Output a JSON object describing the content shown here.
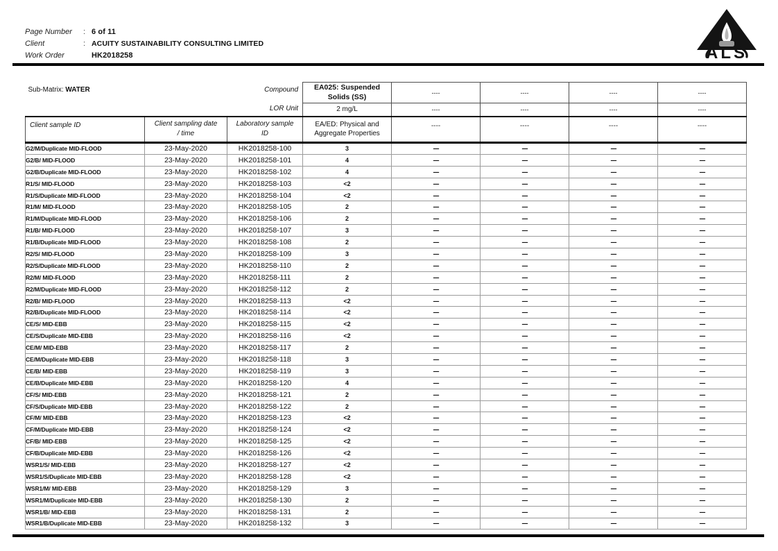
{
  "header": {
    "rows": [
      {
        "label": "Page Number",
        "colon": ":",
        "value": "6 of 11"
      },
      {
        "label": "Client",
        "colon": ":",
        "value": "ACUITY SUSTAINABILITY CONSULTING LIMITED"
      },
      {
        "label": "Work Order",
        "colon": "",
        "value": "HK2018258"
      }
    ]
  },
  "logo": {
    "text": "ALS",
    "paren_open": "(",
    "paren_close": ")"
  },
  "table": {
    "sub_matrix_label": "Sub-Matrix:",
    "sub_matrix_value": "WATER",
    "compound_label": "Compound",
    "lor_unit_label": "LOR Unit",
    "columns": {
      "client_sample_id": "Client sample ID",
      "sampling_date_line1": "Client sampling date",
      "sampling_date_line2": "/ time",
      "lab_sample_line1": "Laboratory sample",
      "lab_sample_line2": "ID"
    },
    "compound_column": {
      "title_line1": "EA025: Suspended",
      "title_line2": "Solids (SS)",
      "lor_unit": "2 mg/L",
      "method_line1": "EA/ED: Physical and",
      "method_line2": "Aggregate Properties"
    },
    "empty_placeholder": "----",
    "rows": [
      {
        "client_sample_id": "G2/M/Duplicate MID-FLOOD",
        "date": "23-May-2020",
        "lab_id": "HK2018258-100",
        "value": "3"
      },
      {
        "client_sample_id": "G2/B/ MID-FLOOD",
        "date": "23-May-2020",
        "lab_id": "HK2018258-101",
        "value": "4"
      },
      {
        "client_sample_id": "G2/B/Duplicate MID-FLOOD",
        "date": "23-May-2020",
        "lab_id": "HK2018258-102",
        "value": "4"
      },
      {
        "client_sample_id": "R1/S/ MID-FLOOD",
        "date": "23-May-2020",
        "lab_id": "HK2018258-103",
        "value": "<2"
      },
      {
        "client_sample_id": "R1/S/Duplicate MID-FLOOD",
        "date": "23-May-2020",
        "lab_id": "HK2018258-104",
        "value": "<2"
      },
      {
        "client_sample_id": "R1/M/ MID-FLOOD",
        "date": "23-May-2020",
        "lab_id": "HK2018258-105",
        "value": "2"
      },
      {
        "client_sample_id": "R1/M/Duplicate MID-FLOOD",
        "date": "23-May-2020",
        "lab_id": "HK2018258-106",
        "value": "2"
      },
      {
        "client_sample_id": "R1/B/ MID-FLOOD",
        "date": "23-May-2020",
        "lab_id": "HK2018258-107",
        "value": "3"
      },
      {
        "client_sample_id": "R1/B/Duplicate MID-FLOOD",
        "date": "23-May-2020",
        "lab_id": "HK2018258-108",
        "value": "2"
      },
      {
        "client_sample_id": "R2/S/ MID-FLOOD",
        "date": "23-May-2020",
        "lab_id": "HK2018258-109",
        "value": "3"
      },
      {
        "client_sample_id": "R2/S/Duplicate MID-FLOOD",
        "date": "23-May-2020",
        "lab_id": "HK2018258-110",
        "value": "2"
      },
      {
        "client_sample_id": "R2/M/ MID-FLOOD",
        "date": "23-May-2020",
        "lab_id": "HK2018258-111",
        "value": "2"
      },
      {
        "client_sample_id": "R2/M/Duplicate MID-FLOOD",
        "date": "23-May-2020",
        "lab_id": "HK2018258-112",
        "value": "2"
      },
      {
        "client_sample_id": "R2/B/ MID-FLOOD",
        "date": "23-May-2020",
        "lab_id": "HK2018258-113",
        "value": "<2"
      },
      {
        "client_sample_id": "R2/B/Duplicate MID-FLOOD",
        "date": "23-May-2020",
        "lab_id": "HK2018258-114",
        "value": "<2"
      },
      {
        "client_sample_id": "CE/S/ MID-EBB",
        "date": "23-May-2020",
        "lab_id": "HK2018258-115",
        "value": "<2"
      },
      {
        "client_sample_id": "CE/S/Duplicate MID-EBB",
        "date": "23-May-2020",
        "lab_id": "HK2018258-116",
        "value": "<2"
      },
      {
        "client_sample_id": "CE/M/ MID-EBB",
        "date": "23-May-2020",
        "lab_id": "HK2018258-117",
        "value": "2"
      },
      {
        "client_sample_id": "CE/M/Duplicate MID-EBB",
        "date": "23-May-2020",
        "lab_id": "HK2018258-118",
        "value": "3"
      },
      {
        "client_sample_id": "CE/B/ MID-EBB",
        "date": "23-May-2020",
        "lab_id": "HK2018258-119",
        "value": "3"
      },
      {
        "client_sample_id": "CE/B/Duplicate MID-EBB",
        "date": "23-May-2020",
        "lab_id": "HK2018258-120",
        "value": "4"
      },
      {
        "client_sample_id": "CF/S/ MID-EBB",
        "date": "23-May-2020",
        "lab_id": "HK2018258-121",
        "value": "2"
      },
      {
        "client_sample_id": "CF/S/Duplicate MID-EBB",
        "date": "23-May-2020",
        "lab_id": "HK2018258-122",
        "value": "2"
      },
      {
        "client_sample_id": "CF/M/ MID-EBB",
        "date": "23-May-2020",
        "lab_id": "HK2018258-123",
        "value": "<2"
      },
      {
        "client_sample_id": "CF/M/Duplicate MID-EBB",
        "date": "23-May-2020",
        "lab_id": "HK2018258-124",
        "value": "<2"
      },
      {
        "client_sample_id": "CF/B/ MID-EBB",
        "date": "23-May-2020",
        "lab_id": "HK2018258-125",
        "value": "<2"
      },
      {
        "client_sample_id": "CF/B/Duplicate MID-EBB",
        "date": "23-May-2020",
        "lab_id": "HK2018258-126",
        "value": "<2"
      },
      {
        "client_sample_id": "WSR1/S/ MID-EBB",
        "date": "23-May-2020",
        "lab_id": "HK2018258-127",
        "value": "<2"
      },
      {
        "client_sample_id": "WSR1/S/Duplicate MID-EBB",
        "date": "23-May-2020",
        "lab_id": "HK2018258-128",
        "value": "<2"
      },
      {
        "client_sample_id": "WSR1/M/ MID-EBB",
        "date": "23-May-2020",
        "lab_id": "HK2018258-129",
        "value": "3"
      },
      {
        "client_sample_id": "WSR1/M/Duplicate MID-EBB",
        "date": "23-May-2020",
        "lab_id": "HK2018258-130",
        "value": "2"
      },
      {
        "client_sample_id": "WSR1/B/ MID-EBB",
        "date": "23-May-2020",
        "lab_id": "HK2018258-131",
        "value": "2"
      },
      {
        "client_sample_id": "WSR1/B/Duplicate MID-EBB",
        "date": "23-May-2020",
        "lab_id": "HK2018258-132",
        "value": "3"
      }
    ]
  }
}
